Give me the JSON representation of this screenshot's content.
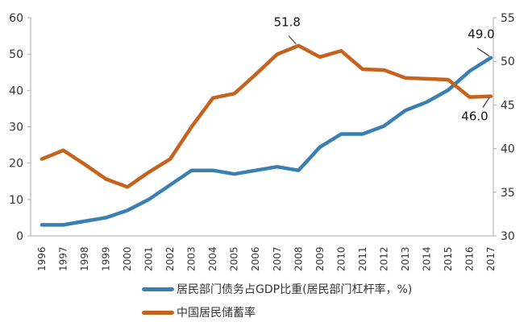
{
  "chart_data": {
    "type": "line",
    "title": "",
    "x": [
      "1996",
      "1997",
      "1998",
      "1999",
      "2000",
      "2001",
      "2002",
      "2003",
      "2004",
      "2005",
      "2006",
      "2007",
      "2008",
      "2009",
      "2010",
      "2011",
      "2012",
      "2013",
      "2014",
      "2015",
      "2016",
      "2017"
    ],
    "y_left": {
      "ylim": [
        0,
        60
      ],
      "ticks": [
        "0",
        "10",
        "20",
        "30",
        "40",
        "50",
        "60"
      ]
    },
    "y_right": {
      "ylim": [
        30,
        55
      ],
      "ticks": [
        "30",
        "35",
        "40",
        "45",
        "50",
        "55"
      ]
    },
    "grid": false,
    "legend_position": "bottom",
    "series": [
      {
        "name": "居民部门债务占GDP比重(居民部门杠杆率，%)",
        "axis": "left",
        "color": "#3a7fb2",
        "values": [
          3,
          3,
          4,
          5,
          7,
          10,
          14,
          18,
          18,
          17,
          18,
          19,
          18,
          24.4,
          28,
          28,
          30.2,
          34.5,
          36.8,
          40.1,
          45.3,
          49.0
        ]
      },
      {
        "name": "中国居民储蓄率",
        "axis": "right",
        "color": "#c5621c",
        "values": [
          38.8,
          39.8,
          38.2,
          36.5,
          35.6,
          37.3,
          38.8,
          42.5,
          45.8,
          46.3,
          48.5,
          50.8,
          51.8,
          50.5,
          51.2,
          49.1,
          49.0,
          48.1,
          48.0,
          47.9,
          45.9,
          46.0
        ]
      }
    ],
    "annotations": [
      {
        "text": "51.8",
        "series": 1,
        "x": "2008"
      },
      {
        "text": "49.0",
        "series": 0,
        "x": "2017"
      },
      {
        "text": "46.0",
        "series": 1,
        "x": "2017"
      }
    ]
  }
}
